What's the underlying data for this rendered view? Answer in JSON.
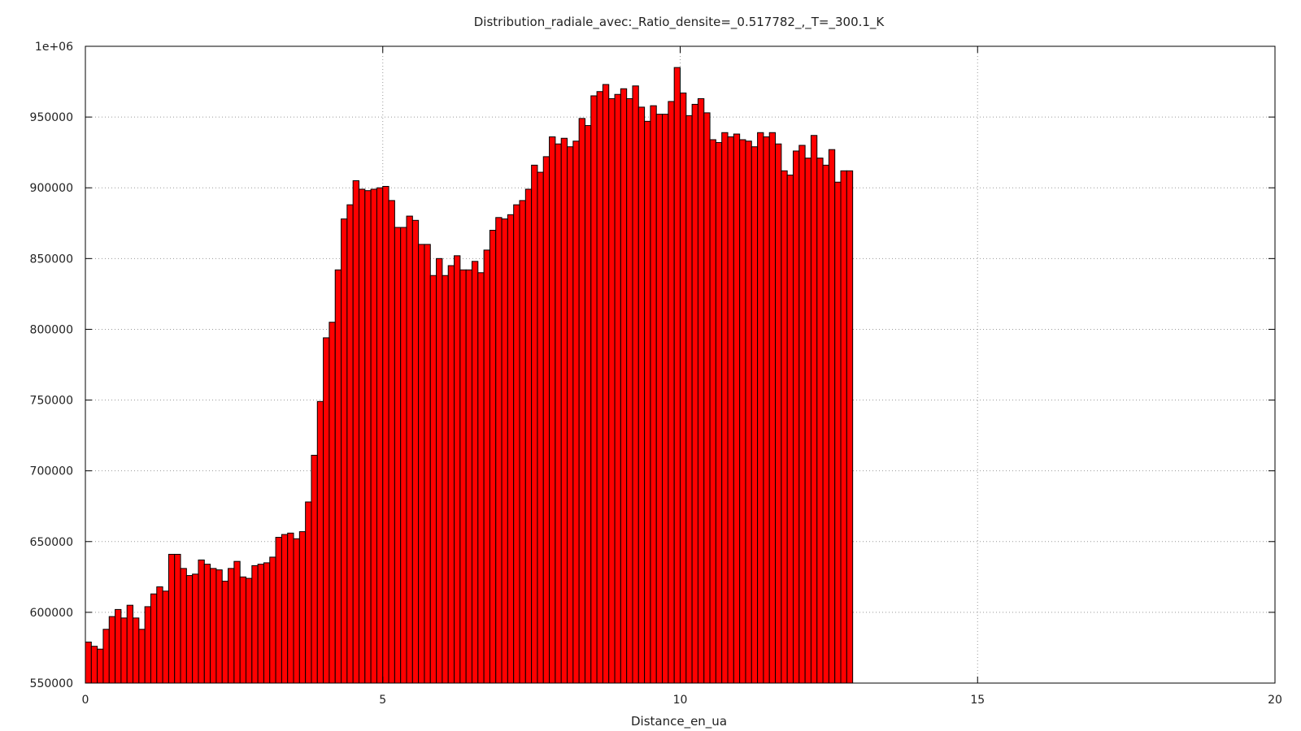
{
  "chart_data": {
    "type": "bar",
    "title": "Distribution_radiale_avec:_Ratio_densite=_0.517782_,_T=_300.1_K",
    "xlabel": "Distance_en_ua",
    "ylabel": "",
    "xlim": [
      0,
      20
    ],
    "ylim": [
      550000,
      1000000
    ],
    "x_ticks": [
      0,
      5,
      10,
      15,
      20
    ],
    "x_tick_labels": [
      "0",
      "5",
      "10",
      "15",
      "20"
    ],
    "y_ticks": [
      550000,
      600000,
      650000,
      700000,
      750000,
      800000,
      850000,
      900000,
      950000,
      1000000
    ],
    "y_tick_labels": [
      "550000",
      "600000",
      "650000",
      "700000",
      "750000",
      "800000",
      "850000",
      "900000",
      "950000",
      "1e+06"
    ],
    "grid": true,
    "bar_color": "#ff0000",
    "bar_edge_color": "#000000",
    "bin_width": 0.1,
    "x_start": 0,
    "values": [
      579000,
      576000,
      574000,
      588000,
      597000,
      602000,
      596000,
      605000,
      596000,
      588000,
      604000,
      613000,
      618000,
      615000,
      641000,
      641000,
      631000,
      626000,
      627000,
      637000,
      634000,
      631000,
      630000,
      622000,
      631000,
      636000,
      625000,
      624000,
      633000,
      634000,
      635000,
      639000,
      653000,
      655000,
      656000,
      652000,
      657000,
      678000,
      711000,
      749000,
      794000,
      805000,
      842000,
      878000,
      888000,
      905000,
      899000,
      898000,
      899000,
      900000,
      901000,
      891000,
      872000,
      872000,
      880000,
      877000,
      860000,
      860000,
      838000,
      850000,
      838000,
      845000,
      852000,
      842000,
      842000,
      848000,
      840000,
      856000,
      870000,
      879000,
      878000,
      881000,
      888000,
      891000,
      899000,
      916000,
      911000,
      922000,
      936000,
      931000,
      935000,
      929000,
      933000,
      949000,
      944000,
      965000,
      968000,
      973000,
      963000,
      966000,
      970000,
      963000,
      972000,
      957000,
      947000,
      958000,
      952000,
      952000,
      961000,
      985000,
      967000,
      951000,
      959000,
      963000,
      953000,
      934000,
      932000,
      939000,
      936000,
      938000,
      934000,
      933000,
      929000,
      939000,
      936000,
      939000,
      931000,
      912000,
      909000,
      926000,
      930000,
      921000,
      937000,
      921000,
      916000,
      927000,
      904000,
      912000,
      912000
    ]
  }
}
